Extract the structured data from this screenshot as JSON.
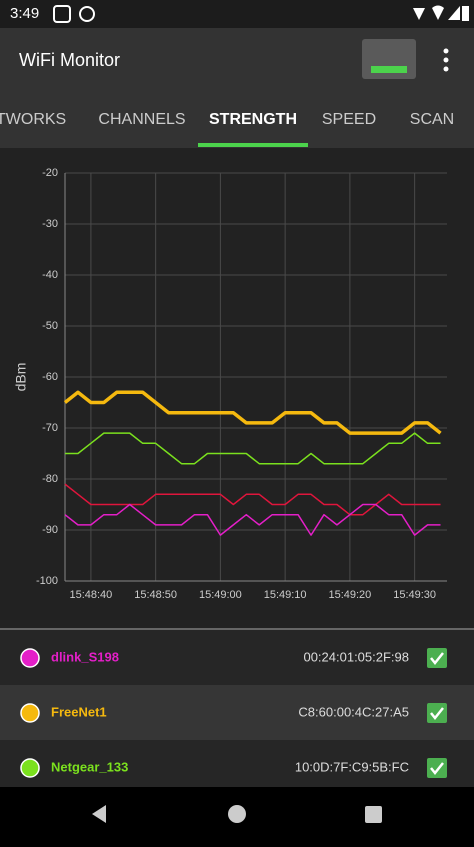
{
  "status_bar": {
    "time": "3:49"
  },
  "app_bar": {
    "title": "WiFi Monitor"
  },
  "tabs": {
    "items": [
      "NETWORKS",
      "CHANNELS",
      "STRENGTH",
      "SPEED",
      "SCAN"
    ],
    "selected": 2
  },
  "chart_data": {
    "type": "line",
    "y_label": "dBm",
    "x": [
      56916,
      56918,
      56920,
      56922,
      56924,
      56926,
      56928,
      56930,
      56932,
      56934,
      56936,
      56938,
      56940,
      56942,
      56944,
      56946,
      56948,
      56950,
      56952,
      56954,
      56956,
      56958,
      56960,
      56962,
      56964,
      56966,
      56968,
      56970,
      56972,
      56974
    ],
    "xlim": [
      56916,
      56975
    ],
    "xticks": [
      {
        "value": 56920,
        "label": "15:48:40"
      },
      {
        "value": 56930,
        "label": "15:48:50"
      },
      {
        "value": 56940,
        "label": "15:49:00"
      },
      {
        "value": 56950,
        "label": "15:49:10"
      },
      {
        "value": 56960,
        "label": "15:49:20"
      },
      {
        "value": 56970,
        "label": "15:49:30"
      }
    ],
    "ylim": [
      -100,
      -20
    ],
    "yticks": [
      -100,
      -90,
      -80,
      -70,
      -60,
      -50,
      -40,
      -30,
      -20
    ],
    "grid": true,
    "series": [
      {
        "name": "dlink_S198",
        "color": "#e41fc8",
        "values": [
          -87,
          -89,
          -89,
          -87,
          -87,
          -85,
          -87,
          -89,
          -89,
          -89,
          -87,
          -87,
          -91,
          -89,
          -87,
          -89,
          -87,
          -87,
          -87,
          -91,
          -87,
          -89,
          -87,
          -85,
          -85,
          -87,
          -87,
          -91,
          -89,
          -89
        ]
      },
      {
        "name": "FreeNet1",
        "color": "#f5b90f",
        "values": [
          -65,
          -63,
          -65,
          -65,
          -63,
          -63,
          -63,
          -65,
          -67,
          -67,
          -67,
          -67,
          -67,
          -67,
          -69,
          -69,
          -69,
          -67,
          -67,
          -67,
          -69,
          -69,
          -71,
          -71,
          -71,
          -71,
          -71,
          -69,
          -69,
          -71
        ]
      },
      {
        "name": "Netgear_133",
        "color": "#7be11e",
        "values": [
          -75,
          -75,
          -73,
          -71,
          -71,
          -71,
          -73,
          -73,
          -75,
          -77,
          -77,
          -75,
          -75,
          -75,
          -75,
          -77,
          -77,
          -77,
          -77,
          -75,
          -77,
          -77,
          -77,
          -77,
          -75,
          -73,
          -73,
          -71,
          -73,
          -73
        ]
      },
      {
        "color": "#e0153c",
        "values": [
          -81,
          -83,
          -85,
          -85,
          -85,
          -85,
          -85,
          -83,
          -83,
          -83,
          -83,
          -83,
          -83,
          -85,
          -83,
          -83,
          -85,
          -85,
          -83,
          -83,
          -85,
          -85,
          -87,
          -87,
          -85,
          -83,
          -85,
          -85,
          -85,
          -85
        ]
      }
    ]
  },
  "network_list": [
    {
      "mac": "00:24:01:05:2F:98"
    },
    {
      "mac": "C8:60:00:4C:27:A5"
    },
    {
      "mac": "10:0D:7F:C9:5B:FC"
    }
  ]
}
